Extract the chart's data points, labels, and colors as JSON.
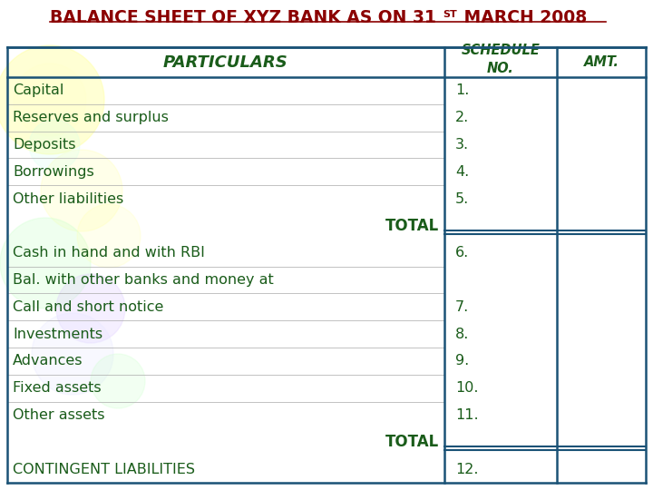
{
  "title_main": "BALANCE SHEET OF XYZ BANK AS ON 31",
  "title_super": "ST",
  "title_end": " MARCH 2008",
  "bg_color": "#FFFFFF",
  "title_color": "#8B0000",
  "header_text_color": "#1a5c1a",
  "body_text_color": "#1a5c1a",
  "table_border_color": "#1a5276",
  "circle_params": [
    [
      55,
      430,
      60,
      "#ffffaa",
      0.5
    ],
    [
      55,
      430,
      40,
      "#ffffcc",
      0.35
    ],
    [
      90,
      330,
      45,
      "#ffffaa",
      0.25
    ],
    [
      50,
      250,
      50,
      "#ccffcc",
      0.3
    ],
    [
      100,
      200,
      38,
      "#e0ccff",
      0.3
    ],
    [
      60,
      380,
      28,
      "#ccffee",
      0.2
    ],
    [
      120,
      280,
      35,
      "#ffffaa",
      0.2
    ],
    [
      80,
      150,
      45,
      "#e8e8ff",
      0.3
    ],
    [
      130,
      120,
      30,
      "#ccffcc",
      0.25
    ]
  ],
  "rows": [
    {
      "particulars": "Capital",
      "schedule": "1.",
      "total": false
    },
    {
      "particulars": "Reserves and surplus",
      "schedule": "2.",
      "total": false
    },
    {
      "particulars": "Deposits",
      "schedule": "3.",
      "total": false
    },
    {
      "particulars": "Borrowings",
      "schedule": "4.",
      "total": false
    },
    {
      "particulars": "Other liabilities",
      "schedule": "5.",
      "total": false
    },
    {
      "particulars": "TOTAL",
      "schedule": "",
      "total": true
    },
    {
      "particulars": "Cash in hand and with RBI",
      "schedule": "6.",
      "total": false
    },
    {
      "particulars": "Bal. with other banks and money at",
      "schedule": "",
      "total": false
    },
    {
      "particulars": "Call and short notice",
      "schedule": "7.",
      "total": false
    },
    {
      "particulars": "Investments",
      "schedule": "8.",
      "total": false
    },
    {
      "particulars": "Advances",
      "schedule": "9.",
      "total": false
    },
    {
      "particulars": "Fixed assets",
      "schedule": "10.",
      "total": false
    },
    {
      "particulars": "Other assets",
      "schedule": "11.",
      "total": false
    },
    {
      "particulars": "TOTAL",
      "schedule": "",
      "total": true
    },
    {
      "particulars": "CONTINGENT LIABILITIES",
      "schedule": "12.",
      "total": false
    }
  ]
}
